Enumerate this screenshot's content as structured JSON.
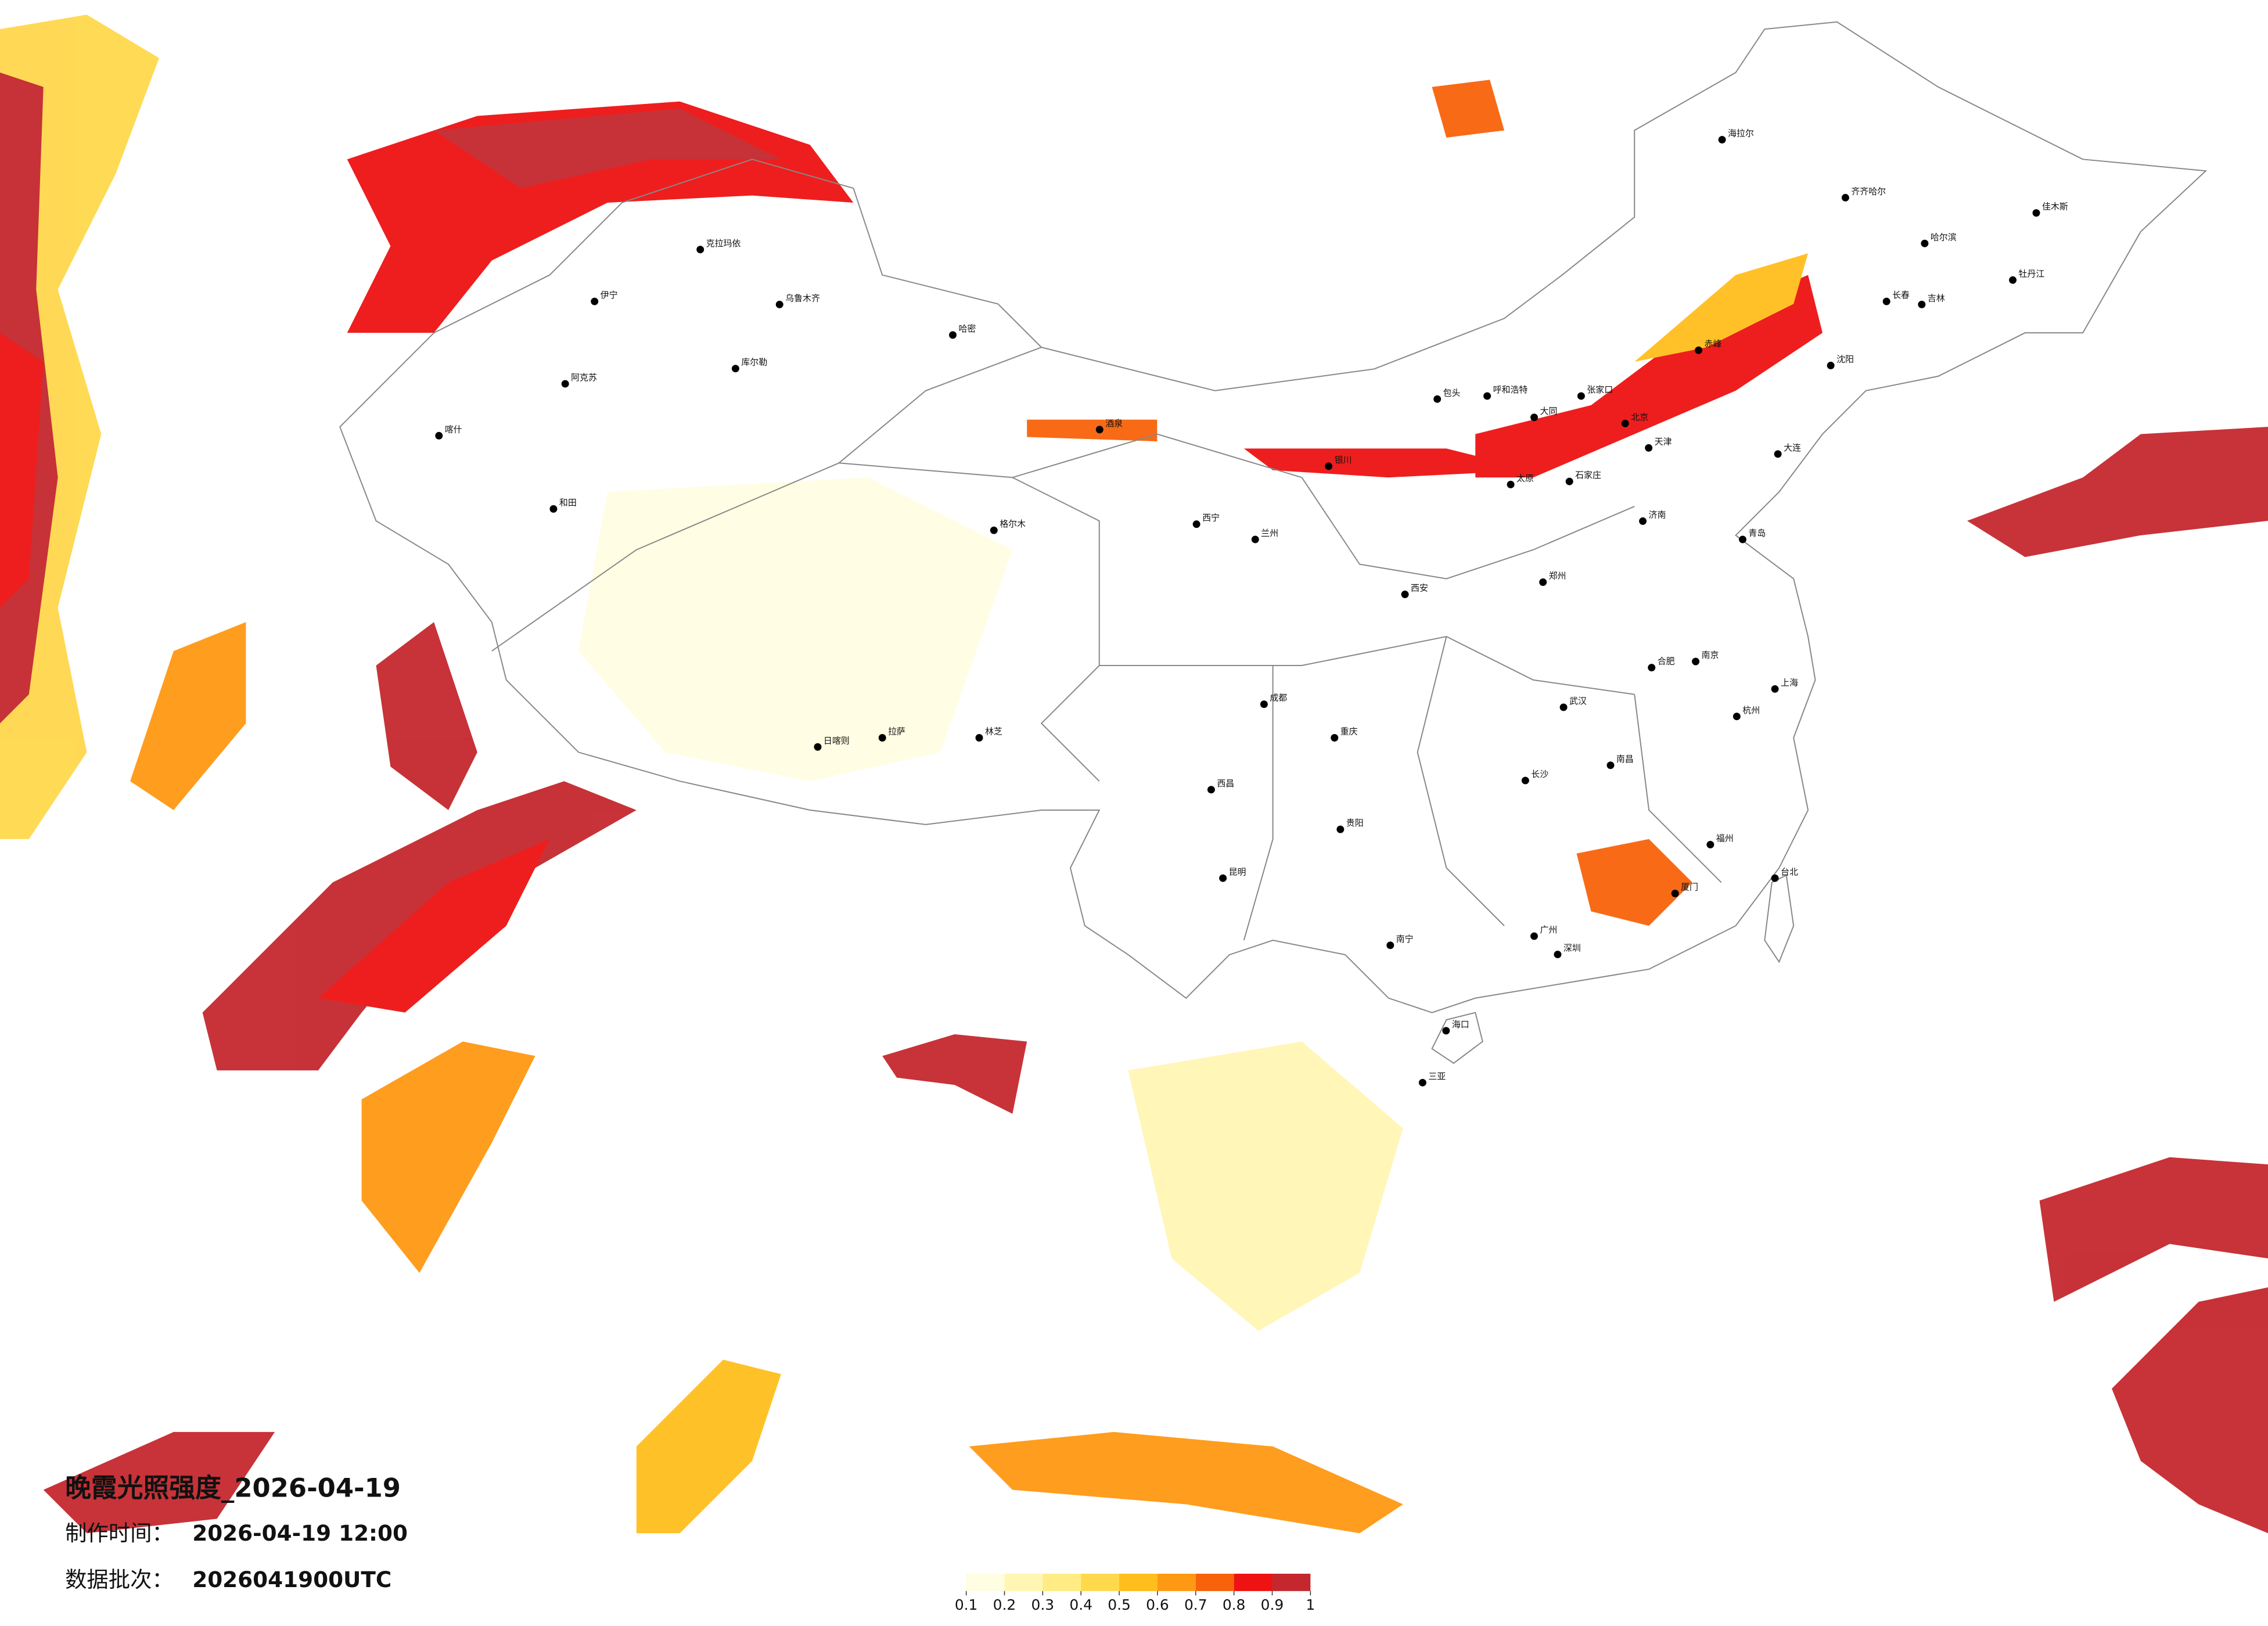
{
  "title": "晚霞光照强度_2026-04-19",
  "production_time": {
    "label": "制作时间：",
    "value": "2026-04-19 12:00"
  },
  "data_batch": {
    "label": "数据批次：",
    "value": "2026041900UTC"
  },
  "colorbar": {
    "ticks": [
      0.1,
      0.2,
      0.3,
      0.4,
      0.5,
      0.6,
      0.7,
      0.8,
      0.9,
      1
    ],
    "colors": [
      "#fffde2",
      "#fff6b4",
      "#ffec84",
      "#ffd84c",
      "#ffbe1c",
      "#ff9812",
      "#f8620a",
      "#ee1212",
      "#c4282e"
    ]
  },
  "cities": [
    {
      "name": "北京",
      "lon": 116.4,
      "lat": 39.9
    },
    {
      "name": "天津",
      "lon": 117.2,
      "lat": 39.1
    },
    {
      "name": "上海",
      "lon": 121.5,
      "lat": 31.2
    },
    {
      "name": "广州",
      "lon": 113.3,
      "lat": 23.1
    },
    {
      "name": "深圳",
      "lon": 114.1,
      "lat": 22.5
    },
    {
      "name": "重庆",
      "lon": 106.5,
      "lat": 29.6
    },
    {
      "name": "成都",
      "lon": 104.1,
      "lat": 30.7
    },
    {
      "name": "西安",
      "lon": 108.9,
      "lat": 34.3
    },
    {
      "name": "武汉",
      "lon": 114.3,
      "lat": 30.6
    },
    {
      "name": "长沙",
      "lon": 113.0,
      "lat": 28.2
    },
    {
      "name": "南京",
      "lon": 118.8,
      "lat": 32.1
    },
    {
      "name": "杭州",
      "lon": 120.2,
      "lat": 30.3
    },
    {
      "name": "福州",
      "lon": 119.3,
      "lat": 26.1
    },
    {
      "name": "南昌",
      "lon": 115.9,
      "lat": 28.7
    },
    {
      "name": "合肥",
      "lon": 117.3,
      "lat": 31.9
    },
    {
      "name": "郑州",
      "lon": 113.6,
      "lat": 34.7
    },
    {
      "name": "济南",
      "lon": 117.0,
      "lat": 36.7
    },
    {
      "name": "太原",
      "lon": 112.5,
      "lat": 37.9
    },
    {
      "name": "石家庄",
      "lon": 114.5,
      "lat": 38.0
    },
    {
      "name": "呼和浩特",
      "lon": 111.7,
      "lat": 40.8
    },
    {
      "name": "沈阳",
      "lon": 123.4,
      "lat": 41.8
    },
    {
      "name": "长春",
      "lon": 125.3,
      "lat": 43.9
    },
    {
      "name": "哈尔滨",
      "lon": 126.6,
      "lat": 45.8
    },
    {
      "name": "兰州",
      "lon": 103.8,
      "lat": 36.1
    },
    {
      "name": "西宁",
      "lon": 101.8,
      "lat": 36.6
    },
    {
      "name": "银川",
      "lon": 106.3,
      "lat": 38.5
    },
    {
      "name": "乌鲁木齐",
      "lon": 87.6,
      "lat": 43.8
    },
    {
      "name": "拉萨",
      "lon": 91.1,
      "lat": 29.6
    },
    {
      "name": "昆明",
      "lon": 102.7,
      "lat": 25.0
    },
    {
      "name": "贵阳",
      "lon": 106.7,
      "lat": 26.6
    },
    {
      "name": "南宁",
      "lon": 108.4,
      "lat": 22.8
    },
    {
      "name": "海口",
      "lon": 110.3,
      "lat": 20.0
    },
    {
      "name": "台北",
      "lon": 121.5,
      "lat": 25.0
    },
    {
      "name": "喀什",
      "lon": 76.0,
      "lat": 39.5
    },
    {
      "name": "和田",
      "lon": 79.9,
      "lat": 37.1
    },
    {
      "name": "伊宁",
      "lon": 81.3,
      "lat": 43.9
    },
    {
      "name": "克拉玛依",
      "lon": 84.9,
      "lat": 45.6
    },
    {
      "name": "哈密",
      "lon": 93.5,
      "lat": 42.8
    },
    {
      "name": "格尔木",
      "lon": 94.9,
      "lat": 36.4
    },
    {
      "name": "日喀则",
      "lon": 88.9,
      "lat": 29.3
    },
    {
      "name": "林芝",
      "lon": 94.4,
      "lat": 29.6
    },
    {
      "name": "海拉尔",
      "lon": 119.7,
      "lat": 49.2
    },
    {
      "name": "齐齐哈尔",
      "lon": 123.9,
      "lat": 47.3
    },
    {
      "name": "大连",
      "lon": 121.6,
      "lat": 38.9
    },
    {
      "name": "青岛",
      "lon": 120.4,
      "lat": 36.1
    },
    {
      "name": "厦门",
      "lon": 118.1,
      "lat": 24.5
    },
    {
      "name": "包头",
      "lon": 110.0,
      "lat": 40.7
    },
    {
      "name": "大同",
      "lon": 113.3,
      "lat": 40.1
    },
    {
      "name": "张家口",
      "lon": 114.9,
      "lat": 40.8
    },
    {
      "name": "赤峰",
      "lon": 118.9,
      "lat": 42.3
    },
    {
      "name": "吉林",
      "lon": 126.5,
      "lat": 43.8
    },
    {
      "name": "牡丹江",
      "lon": 129.6,
      "lat": 44.6
    },
    {
      "name": "佳木斯",
      "lon": 130.4,
      "lat": 46.8
    },
    {
      "name": "酒泉",
      "lon": 98.5,
      "lat": 39.7
    },
    {
      "name": "阿克苏",
      "lon": 80.3,
      "lat": 41.2
    },
    {
      "name": "库尔勒",
      "lon": 86.1,
      "lat": 41.7
    },
    {
      "name": "西昌",
      "lon": 102.3,
      "lat": 27.9
    },
    {
      "name": "三亚",
      "lon": 109.5,
      "lat": 18.3
    }
  ]
}
